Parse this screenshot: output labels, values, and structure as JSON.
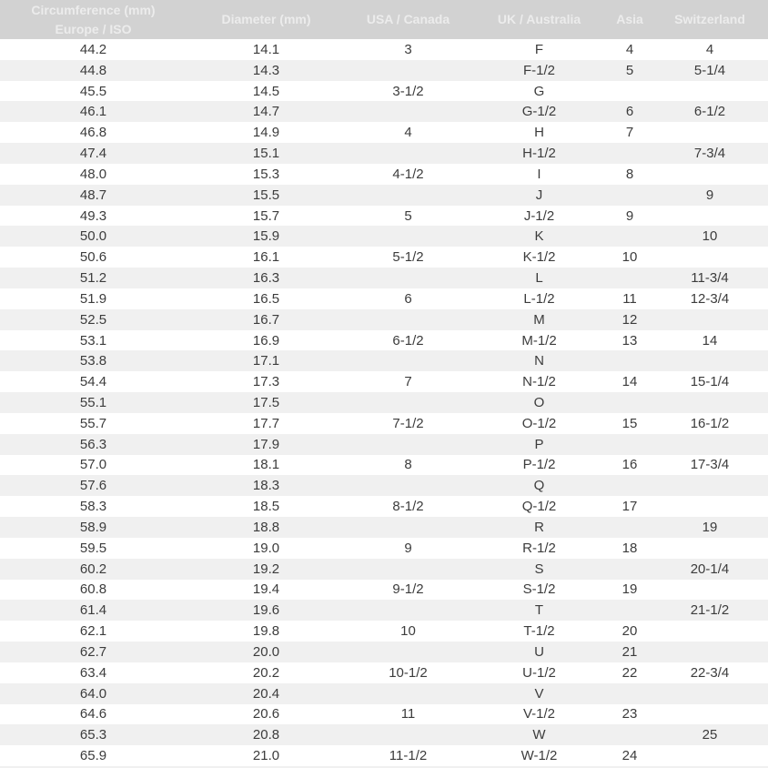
{
  "colors": {
    "header_bg": "#d2d2d2",
    "header_text": "#ececec",
    "row_bg": "#ffffff",
    "row_alt_bg": "#f0f0f0",
    "body_text": "#3c3c3c"
  },
  "chart_data": {
    "type": "table",
    "header": {
      "circumference_title": "Circumference (mm)",
      "circumference_subtitle": "Europe / ISO",
      "columns": [
        "Diameter (mm)",
        "USA / Canada",
        "UK / Australia",
        "Asia",
        "Switzerland"
      ]
    },
    "rows": [
      [
        "44.2",
        "14.1",
        "3",
        "F",
        "4",
        "4"
      ],
      [
        "44.8",
        "14.3",
        "",
        "F-1/2",
        "5",
        "5-1/4"
      ],
      [
        "45.5",
        "14.5",
        "3-1/2",
        "G",
        "",
        ""
      ],
      [
        "46.1",
        "14.7",
        "",
        "G-1/2",
        "6",
        "6-1/2"
      ],
      [
        "46.8",
        "14.9",
        "4",
        "H",
        "7",
        ""
      ],
      [
        "47.4",
        "15.1",
        "",
        "H-1/2",
        "",
        "7-3/4"
      ],
      [
        "48.0",
        "15.3",
        "4-1/2",
        "I",
        "8",
        ""
      ],
      [
        "48.7",
        "15.5",
        "",
        "J",
        "",
        "9"
      ],
      [
        "49.3",
        "15.7",
        "5",
        "J-1/2",
        "9",
        ""
      ],
      [
        "50.0",
        "15.9",
        "",
        "K",
        "",
        "10"
      ],
      [
        "50.6",
        "16.1",
        "5-1/2",
        "K-1/2",
        "10",
        ""
      ],
      [
        "51.2",
        "16.3",
        "",
        "L",
        "",
        "11-3/4"
      ],
      [
        "51.9",
        "16.5",
        "6",
        "L-1/2",
        "11",
        "12-3/4"
      ],
      [
        "52.5",
        "16.7",
        "",
        "M",
        "12",
        ""
      ],
      [
        "53.1",
        "16.9",
        "6-1/2",
        "M-1/2",
        "13",
        "14"
      ],
      [
        "53.8",
        "17.1",
        "",
        "N",
        "",
        ""
      ],
      [
        "54.4",
        "17.3",
        "7",
        "N-1/2",
        "14",
        "15-1/4"
      ],
      [
        "55.1",
        "17.5",
        "",
        "O",
        "",
        ""
      ],
      [
        "55.7",
        "17.7",
        "7-1/2",
        "O-1/2",
        "15",
        "16-1/2"
      ],
      [
        "56.3",
        "17.9",
        "",
        "P",
        "",
        ""
      ],
      [
        "57.0",
        "18.1",
        "8",
        "P-1/2",
        "16",
        "17-3/4"
      ],
      [
        "57.6",
        "18.3",
        "",
        "Q",
        "",
        ""
      ],
      [
        "58.3",
        "18.5",
        "8-1/2",
        "Q-1/2",
        "17",
        ""
      ],
      [
        "58.9",
        "18.8",
        "",
        "R",
        "",
        "19"
      ],
      [
        "59.5",
        "19.0",
        "9",
        "R-1/2",
        "18",
        ""
      ],
      [
        "60.2",
        "19.2",
        "",
        "S",
        "",
        "20-1/4"
      ],
      [
        "60.8",
        "19.4",
        "9-1/2",
        "S-1/2",
        "19",
        ""
      ],
      [
        "61.4",
        "19.6",
        "",
        "T",
        "",
        "21-1/2"
      ],
      [
        "62.1",
        "19.8",
        "10",
        "T-1/2",
        "20",
        ""
      ],
      [
        "62.7",
        "20.0",
        "",
        "U",
        "21",
        ""
      ],
      [
        "63.4",
        "20.2",
        "10-1/2",
        "U-1/2",
        "22",
        "22-3/4"
      ],
      [
        "64.0",
        "20.4",
        "",
        "V",
        "",
        ""
      ],
      [
        "64.6",
        "20.6",
        "11",
        "V-1/2",
        "23",
        ""
      ],
      [
        "65.3",
        "20.8",
        "",
        "W",
        "",
        "25"
      ],
      [
        "65.9",
        "21.0",
        "11-1/2",
        "W-1/2",
        "24",
        ""
      ]
    ]
  }
}
